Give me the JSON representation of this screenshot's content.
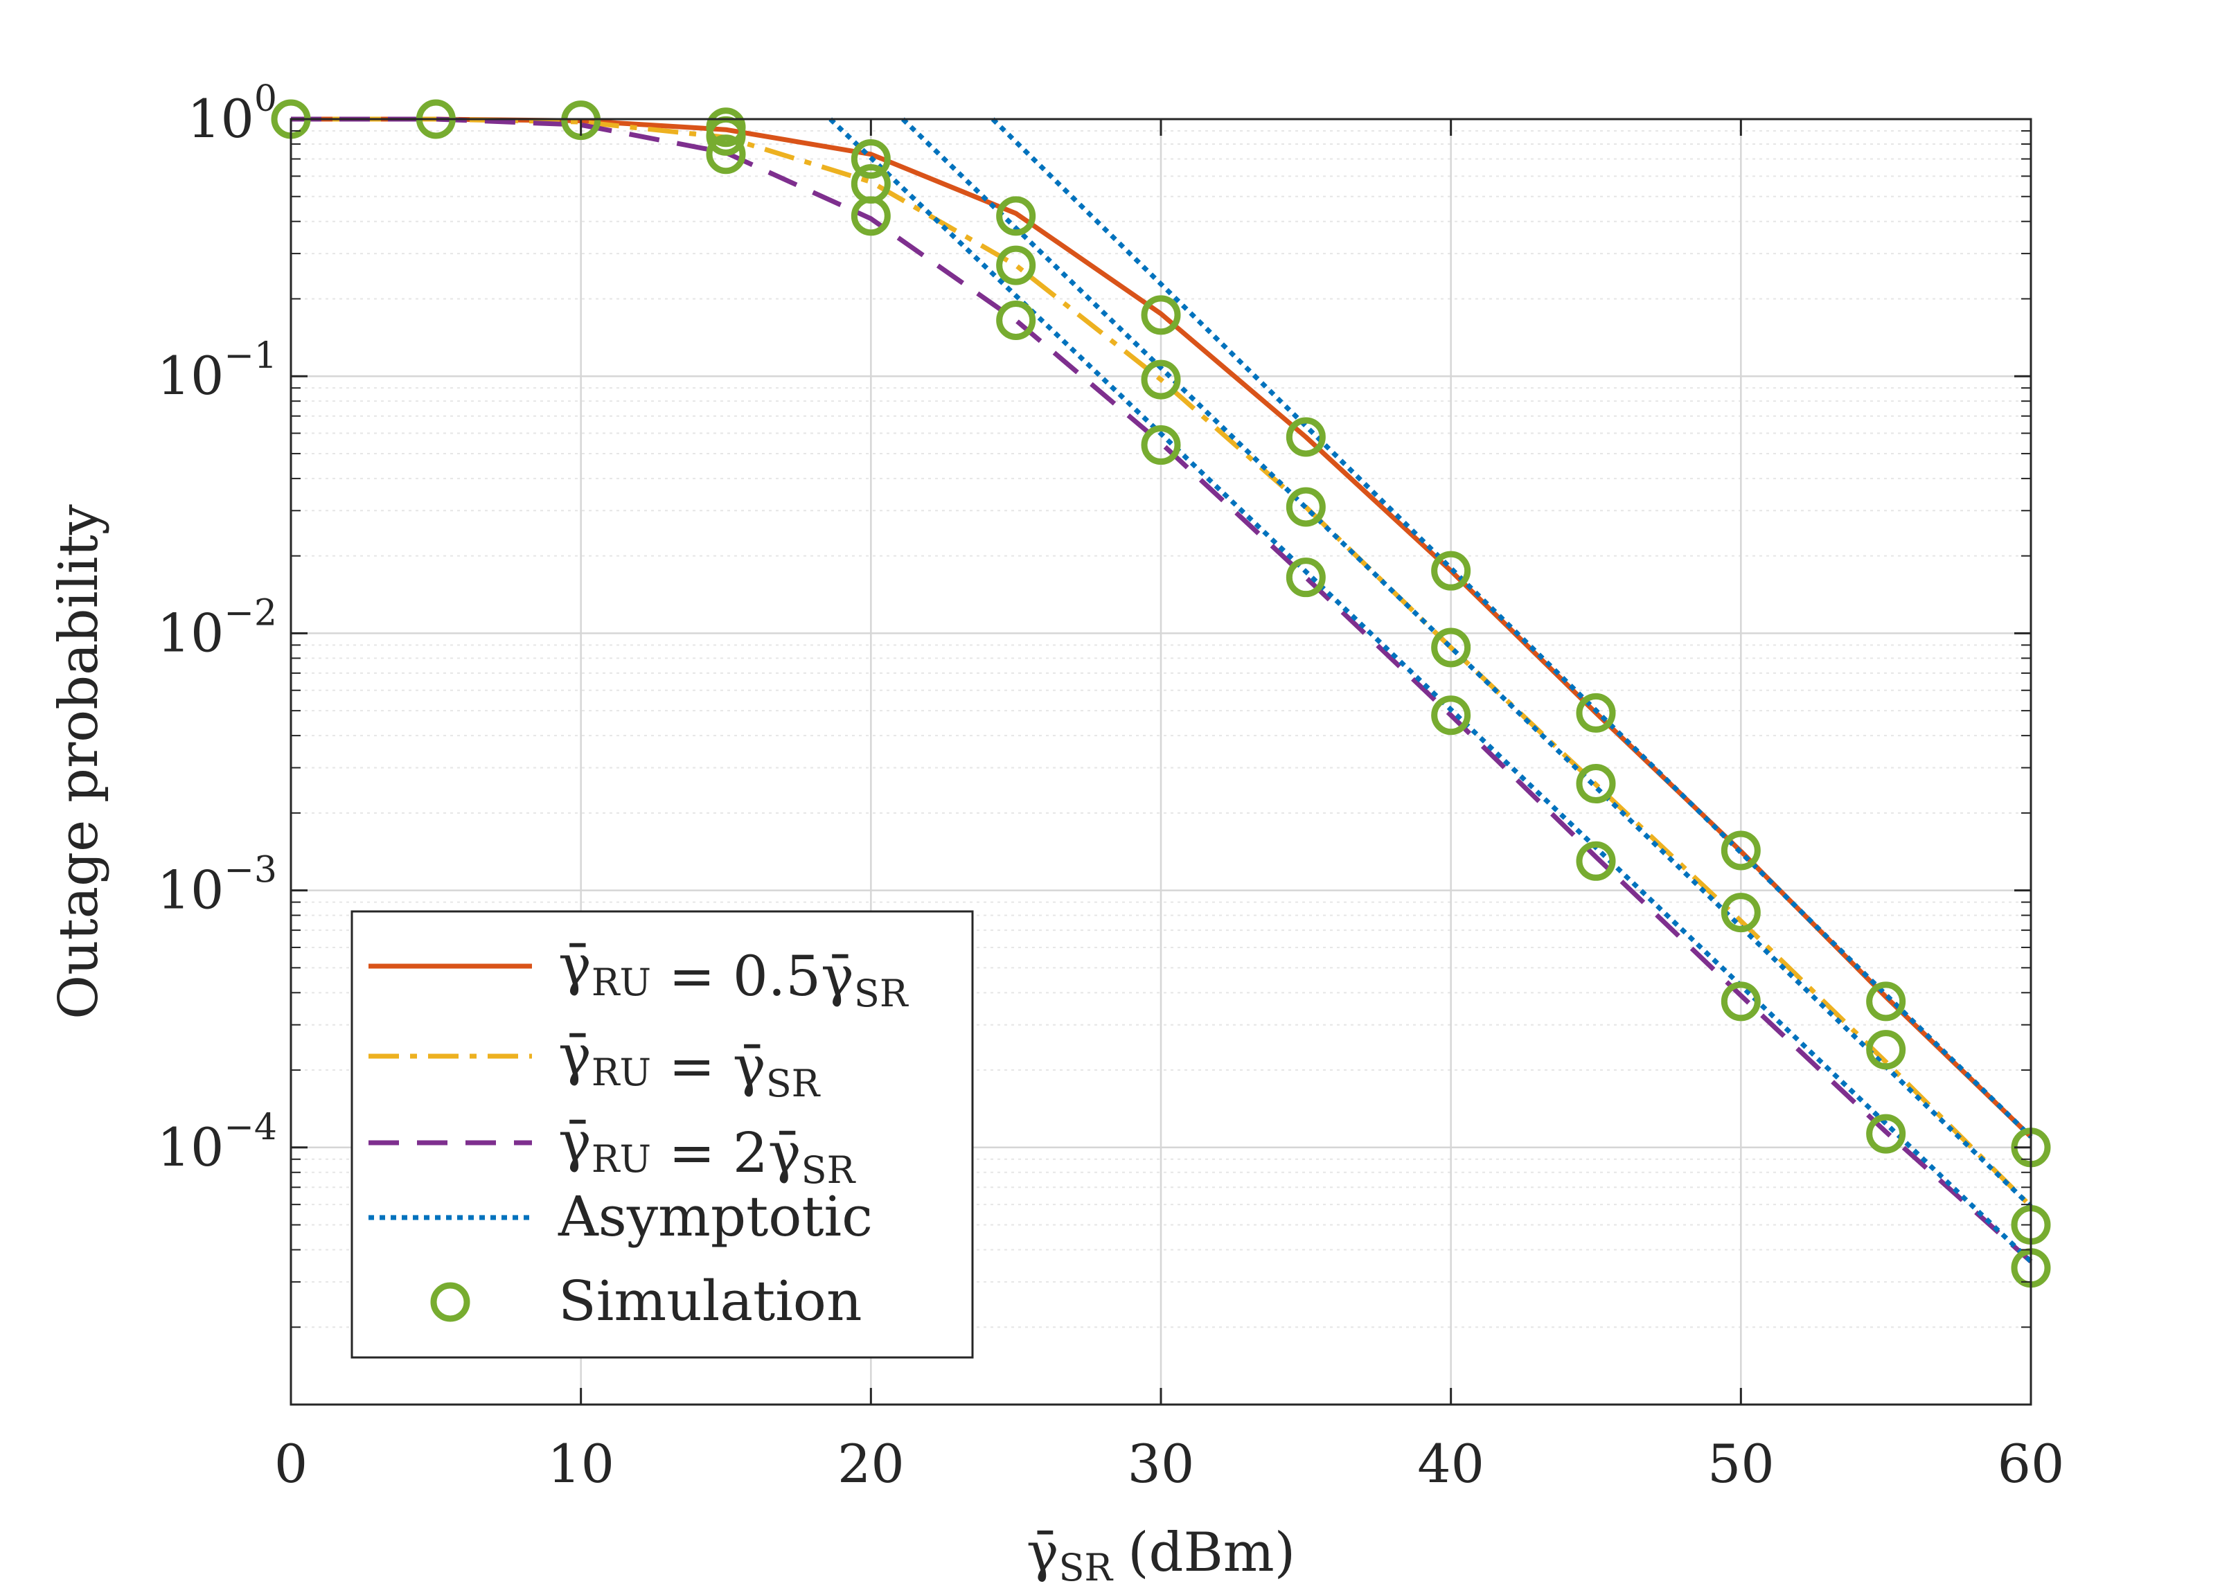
{
  "chart_data": {
    "type": "line",
    "yscale": "log",
    "xlabel": "γ̄SR (dBm)",
    "xlabel_main": "γ̄",
    "xlabel_sub": "SR",
    "xlabel_unit": "(dBm)",
    "ylabel": "Outage probability",
    "xlim": [
      0,
      60
    ],
    "ylim_exp": [
      -5,
      0
    ],
    "xticks": [
      0,
      10,
      20,
      30,
      40,
      50,
      60
    ],
    "yticks_exp": [
      0,
      -1,
      -2,
      -3,
      -4
    ],
    "ytick_base": "10",
    "grid": true,
    "legend_position": "lower-left",
    "colors": {
      "s1": "#D95319",
      "s2": "#EDB120",
      "s3": "#7E2F8E",
      "asym": "#0072BD",
      "sim": "#77AC30",
      "grid_major": "#d6d6d6",
      "grid_minor": "#e6e6e6",
      "axis": "#262626"
    },
    "series": [
      {
        "name": "γ̄RU = 0.5γ̄SR",
        "legend_lhs_sub": "RU",
        "legend_rhs": "0.5",
        "legend_rhs_sub": "SR",
        "style": "solid",
        "colorKey": "s1",
        "x": [
          0,
          5,
          10,
          15,
          20,
          25,
          30,
          35,
          40,
          45,
          50,
          55,
          60
        ],
        "y": [
          1.0,
          1.0,
          0.985,
          0.91,
          0.73,
          0.43,
          0.175,
          0.058,
          0.0175,
          0.0049,
          0.00142,
          0.000385,
          0.00011
        ]
      },
      {
        "name": "γ̄RU = γ̄SR",
        "legend_lhs_sub": "RU",
        "legend_rhs": "",
        "legend_rhs_sub": "SR",
        "style": "dashdot",
        "colorKey": "s2",
        "x": [
          0,
          5,
          10,
          15,
          20,
          25,
          30,
          35,
          40,
          45,
          50,
          55,
          60
        ],
        "y": [
          1.0,
          1.0,
          0.975,
          0.85,
          0.57,
          0.27,
          0.097,
          0.031,
          0.0088,
          0.00258,
          0.00076,
          0.000215,
          5.9e-05
        ]
      },
      {
        "name": "γ̄RU = 2γ̄SR",
        "legend_lhs_sub": "RU",
        "legend_rhs": "2",
        "legend_rhs_sub": "SR",
        "style": "dashed",
        "colorKey": "s3",
        "x": [
          0,
          5,
          10,
          15,
          20,
          25,
          30,
          35,
          40,
          45,
          50,
          55,
          60
        ],
        "y": [
          1.0,
          1.0,
          0.95,
          0.74,
          0.41,
          0.165,
          0.055,
          0.0165,
          0.0048,
          0.00135,
          0.00039,
          0.000115,
          3.6e-05
        ]
      }
    ],
    "asymptotic": {
      "name": "Asymptotic",
      "lines": [
        {
          "x": [
            24.2,
            60
          ],
          "y": [
            1.0,
            0.00011
          ]
        },
        {
          "x": [
            21.1,
            60
          ],
          "y": [
            1.0,
            5.9e-05
          ]
        },
        {
          "x": [
            18.6,
            60
          ],
          "y": [
            1.0,
            3.6e-05
          ]
        }
      ]
    },
    "simulation": {
      "name": "Simulation",
      "points": [
        [
          0,
          1.0
        ],
        [
          5,
          1.0
        ],
        [
          10,
          0.99
        ],
        [
          15,
          0.93
        ],
        [
          15,
          0.86
        ],
        [
          15,
          0.73
        ],
        [
          20,
          0.7
        ],
        [
          20,
          0.56
        ],
        [
          20,
          0.42
        ],
        [
          25,
          0.42
        ],
        [
          25,
          0.27
        ],
        [
          25,
          0.165
        ],
        [
          30,
          0.173
        ],
        [
          30,
          0.097
        ],
        [
          30,
          0.054
        ],
        [
          35,
          0.058
        ],
        [
          35,
          0.031
        ],
        [
          35,
          0.0165
        ],
        [
          40,
          0.0175
        ],
        [
          40,
          0.0088
        ],
        [
          40,
          0.0048
        ],
        [
          45,
          0.0049
        ],
        [
          45,
          0.0026
        ],
        [
          45,
          0.0013
        ],
        [
          50,
          0.00143
        ],
        [
          50,
          0.00082
        ],
        [
          50,
          0.00037
        ],
        [
          55,
          0.00037
        ],
        [
          55,
          0.00024
        ],
        [
          55,
          0.000113
        ],
        [
          60,
          0.0001
        ],
        [
          60,
          5e-05
        ],
        [
          60,
          3.4e-05
        ]
      ]
    }
  }
}
